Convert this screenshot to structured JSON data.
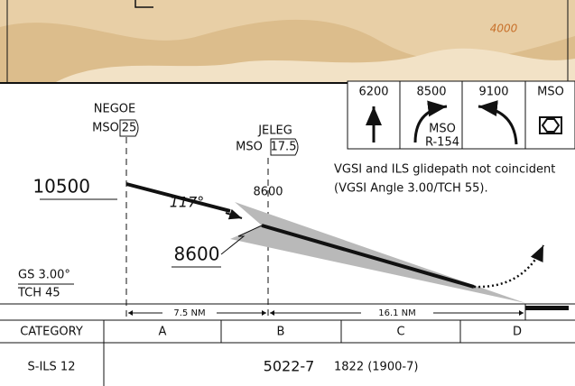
{
  "map": {
    "contour_label": "4000"
  },
  "profile": {
    "fixes": [
      {
        "name": "NEGOE",
        "ref": "MSO",
        "dme": "25"
      },
      {
        "name": "JELEG",
        "ref": "MSO",
        "dme": "17.5"
      }
    ],
    "altitudes": {
      "negoe": "10500",
      "jeleg_gs": "8600",
      "jeleg_min": "8600"
    },
    "course": "117°",
    "glideslope": {
      "angle": "GS 3.00°",
      "tch": "TCH 45"
    },
    "distances": [
      "7.5 NM",
      "16.1 NM"
    ],
    "missed_approach": {
      "headers": [
        "6200",
        "8500",
        "9100",
        "MSO"
      ],
      "turn": [
        "MSO",
        "R-154"
      ]
    },
    "note": [
      "VGSI and ILS glidepath not coincident",
      "(VGSI Angle 3.00/TCH 55)."
    ]
  },
  "minimums": {
    "header": [
      "CATEGORY",
      "A",
      "B",
      "C",
      "D"
    ],
    "row": {
      "label": "S-ILS 12",
      "value": "5022-7",
      "detail": "1822 (1900-7)"
    }
  }
}
